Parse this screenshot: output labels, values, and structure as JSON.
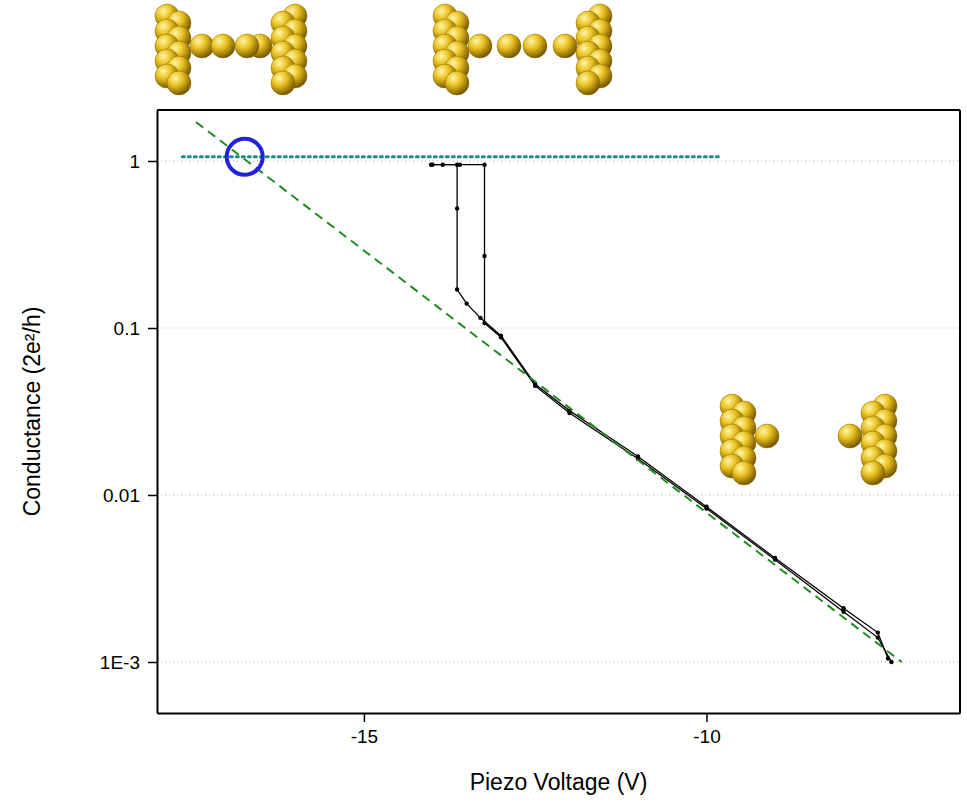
{
  "chart_data": {
    "type": "line",
    "x_label": "Piezo Voltage (V)",
    "y_label": "Conductance (2e²/h)",
    "xlim": [
      -18.02,
      -6.3
    ],
    "ylim": [
      0.000495,
      2.02
    ],
    "xticks": [
      -15,
      -10
    ],
    "yticks": [
      {
        "value": 0.001,
        "label": "1E-3"
      },
      0.01,
      0.1,
      1
    ],
    "log": "y",
    "grid": true,
    "series": [
      {
        "color": "#000000",
        "marker": "circle",
        "line_style": "solid",
        "x": [
          -14.02,
          -13.85,
          -13.64,
          -13.64,
          -13.64,
          -13.5,
          -13.3,
          -13.0,
          -12.5,
          -12.0,
          -11.0,
          -10.0,
          -9.0,
          -8.0,
          -7.5,
          -7.35
        ],
        "values": [
          0.95,
          0.95,
          0.95,
          0.52,
          0.17,
          0.14,
          0.115,
          0.09,
          0.046,
          0.032,
          0.017,
          0.0085,
          0.0042,
          0.0021,
          0.0015,
          0.00105
        ]
      },
      {
        "color": "#000000",
        "marker": "circle",
        "line_style": "solid",
        "x": [
          -14.0,
          -13.6,
          -13.24,
          -13.24,
          -13.24,
          -13.0,
          -12.5,
          -12.0,
          -11.0,
          -10.0,
          -9.0,
          -8.0,
          -7.5,
          -7.3
        ],
        "values": [
          0.95,
          0.95,
          0.95,
          0.27,
          0.107,
          0.088,
          0.045,
          0.031,
          0.0165,
          0.0083,
          0.0041,
          0.002,
          0.0014,
          0.001
        ]
      },
      {
        "color": "#228b22",
        "line_style": "dashed",
        "x": [
          -17.45,
          -7.15
        ],
        "values": [
          1.71,
          0.001
        ]
      },
      {
        "color": "#1f8a8a",
        "line_style": "dotted",
        "x": [
          -17.65,
          -9.8
        ],
        "values": [
          1.06,
          1.06
        ]
      },
      {
        "type": "scatter",
        "color": "#2222dd",
        "marker": "open_circle",
        "x": [
          -16.74
        ],
        "values": [
          1.06
        ]
      }
    ]
  }
}
